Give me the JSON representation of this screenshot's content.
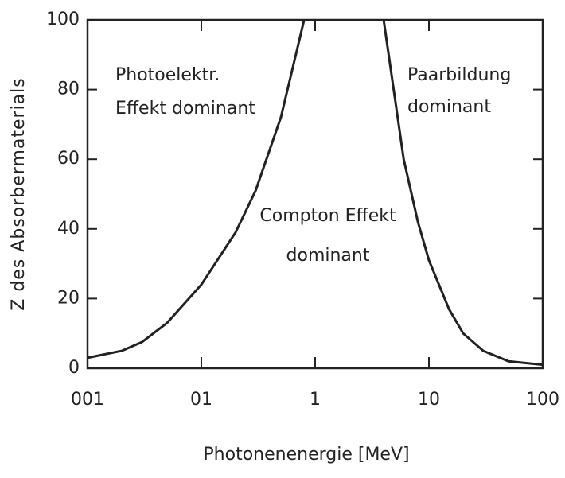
{
  "chart_data": {
    "type": "line",
    "x_label": "Photonenenergie [MeV]",
    "y_label": "Z des Absorbermaterials",
    "xscale": "log",
    "xlim": [
      0.01,
      100
    ],
    "ylim": [
      0,
      100
    ],
    "xticks": [
      {
        "value": 0.01,
        "label": "001"
      },
      {
        "value": 0.1,
        "label": "01"
      },
      1,
      10,
      100
    ],
    "yticks": [
      0,
      20,
      40,
      60,
      80,
      100
    ],
    "series": [
      {
        "color": "#222222",
        "x": [
          0.01,
          0.02,
          0.03,
          0.05,
          0.1,
          0.2,
          0.3,
          0.5,
          0.7,
          0.8
        ],
        "values": [
          3,
          5,
          7.5,
          13,
          24,
          39,
          51,
          72,
          92,
          100
        ]
      },
      {
        "color": "#222222",
        "x": [
          4,
          5,
          6,
          8,
          10,
          15,
          20,
          30,
          50,
          100
        ],
        "values": [
          100,
          78,
          60,
          42,
          31,
          17,
          10,
          5,
          2,
          1
        ]
      }
    ],
    "annotations": [
      "Photoelektr.",
      "Effekt dominant",
      "Paarbildung",
      "dominant",
      "Compton Effekt",
      "dominant"
    ]
  }
}
